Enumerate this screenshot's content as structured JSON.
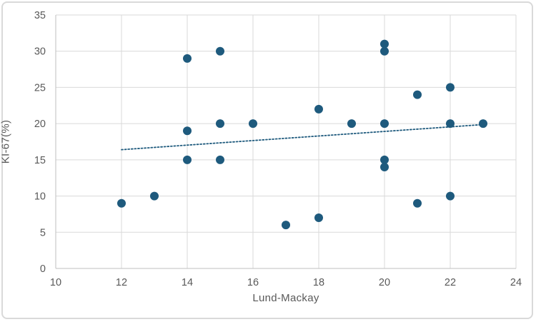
{
  "frame": {
    "background": "#FFFFFF",
    "border_color": "#D9D9D9"
  },
  "chart_data": {
    "type": "scatter",
    "title": "",
    "xlabel": "Lund-Mackay",
    "ylabel": "KI-67(%)",
    "xlim": [
      10,
      24
    ],
    "ylim": [
      0,
      35
    ],
    "xticks": [
      10,
      12,
      14,
      16,
      18,
      20,
      22,
      24
    ],
    "yticks": [
      0,
      5,
      10,
      15,
      20,
      25,
      30,
      35
    ],
    "grid": true,
    "legend_position": "none",
    "points": [
      [
        12,
        9
      ],
      [
        13,
        10
      ],
      [
        14,
        15
      ],
      [
        14,
        19
      ],
      [
        14,
        29
      ],
      [
        15,
        15
      ],
      [
        15,
        20
      ],
      [
        15,
        30
      ],
      [
        16,
        20
      ],
      [
        17,
        6
      ],
      [
        18,
        7
      ],
      [
        18,
        22
      ],
      [
        19,
        20
      ],
      [
        20,
        14
      ],
      [
        20,
        15
      ],
      [
        20,
        20
      ],
      [
        20,
        30
      ],
      [
        20,
        31
      ],
      [
        21,
        9
      ],
      [
        21,
        24
      ],
      [
        22,
        10
      ],
      [
        22,
        20
      ],
      [
        22,
        25
      ],
      [
        23,
        20
      ]
    ],
    "trendline": {
      "type": "linear",
      "style": "dotted",
      "x_start": 12,
      "y_start": 16.4,
      "x_end": 23.1,
      "y_end": 19.9
    },
    "colors": {
      "point": "#1E5A7D",
      "trendline": "#1E5A7D",
      "gridline": "#D9D9D9",
      "axis_line": "#BFBFBF",
      "tick_label": "#595959",
      "axis_title": "#595959"
    }
  }
}
